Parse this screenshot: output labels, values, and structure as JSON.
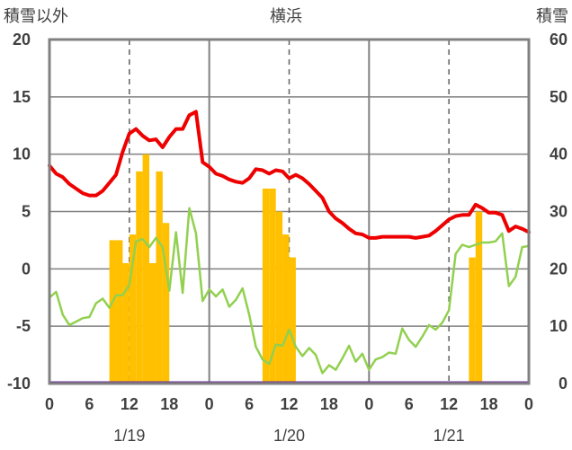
{
  "chart_data": {
    "type": "line",
    "title": "横浜",
    "left_axis_title": "積雪以外",
    "right_axis_title": "積雪",
    "left_ylim": [
      -10,
      20
    ],
    "left_ticks": [
      "20",
      "15",
      "10",
      "5",
      "0",
      "-5",
      "-10"
    ],
    "right_ylim": [
      0,
      60
    ],
    "right_ticks": [
      "60",
      "50",
      "40",
      "30",
      "20",
      "10",
      "0"
    ],
    "xlim": [
      0,
      72
    ],
    "x_ticks": [
      0,
      6,
      12,
      18,
      24,
      30,
      36,
      42,
      48,
      54,
      60,
      66,
      72
    ],
    "x_tick_labels": [
      "0",
      "6",
      "12",
      "18",
      "0",
      "6",
      "12",
      "18",
      "0",
      "6",
      "12",
      "18",
      "0"
    ],
    "dates": [
      {
        "label": "1/19",
        "x": 12
      },
      {
        "label": "1/20",
        "x": 36
      },
      {
        "label": "1/21",
        "x": 60
      }
    ],
    "colors": {
      "temperature": "#ee0000",
      "secondary": "#92d050",
      "snow_depth": "#ffc000",
      "baseline": "#7030a0",
      "frame": "#808080"
    },
    "temperature": [
      9,
      8.3,
      8,
      7.4,
      7,
      6.6,
      6.4,
      6.4,
      6.8,
      7.5,
      8.2,
      10.2,
      11.8,
      12.2,
      11.6,
      11.2,
      11.3,
      10.6,
      11.5,
      12.2,
      12.2,
      13.4,
      13.7,
      9.3,
      8.9,
      8.3,
      8.1,
      7.8,
      7.6,
      7.5,
      7.9,
      8.7,
      8.6,
      8.3,
      8.6,
      8.5,
      7.9,
      8.2,
      7.9,
      7.4,
      6.8,
      6.2,
      5,
      4.4,
      4,
      3.5,
      3.1,
      3,
      2.7,
      2.7,
      2.8,
      2.8,
      2.8,
      2.8,
      2.8,
      2.7,
      2.8,
      2.9,
      3.3,
      3.8,
      4.3,
      4.6,
      4.7,
      4.7,
      5.6,
      5.3,
      4.9,
      4.9,
      4.7,
      3.3,
      3.7,
      3.5,
      3.2
    ],
    "secondary": [
      -2.5,
      -2,
      -4,
      -4.9,
      -4.6,
      -4.3,
      -4.2,
      -3,
      -2.6,
      -3.4,
      -2.3,
      -2.3,
      -1.4,
      2.4,
      2.6,
      1.9,
      2.7,
      1.9,
      -1.9,
      3.2,
      -2.1,
      5.3,
      3.1,
      -2.8,
      -1.8,
      -2.4,
      -1.8,
      -3.3,
      -2.7,
      -1.7,
      -4,
      -6.8,
      -7.9,
      -8.3,
      -6.6,
      -6.7,
      -5.3,
      -6.8,
      -7.6,
      -6.9,
      -7.5,
      -9.1,
      -8.4,
      -8.8,
      -7.8,
      -6.7,
      -8.1,
      -7.4,
      -8.8,
      -7.9,
      -7.7,
      -7.3,
      -7.4,
      -5.2,
      -6.2,
      -6.8,
      -5.9,
      -4.9,
      -5.3,
      -4.7,
      -3.6,
      1.3,
      2.1,
      1.9,
      2.1,
      2.3,
      2.3,
      2.4,
      3.1,
      -1.5,
      -0.7,
      1.9,
      2
    ]
  }
}
